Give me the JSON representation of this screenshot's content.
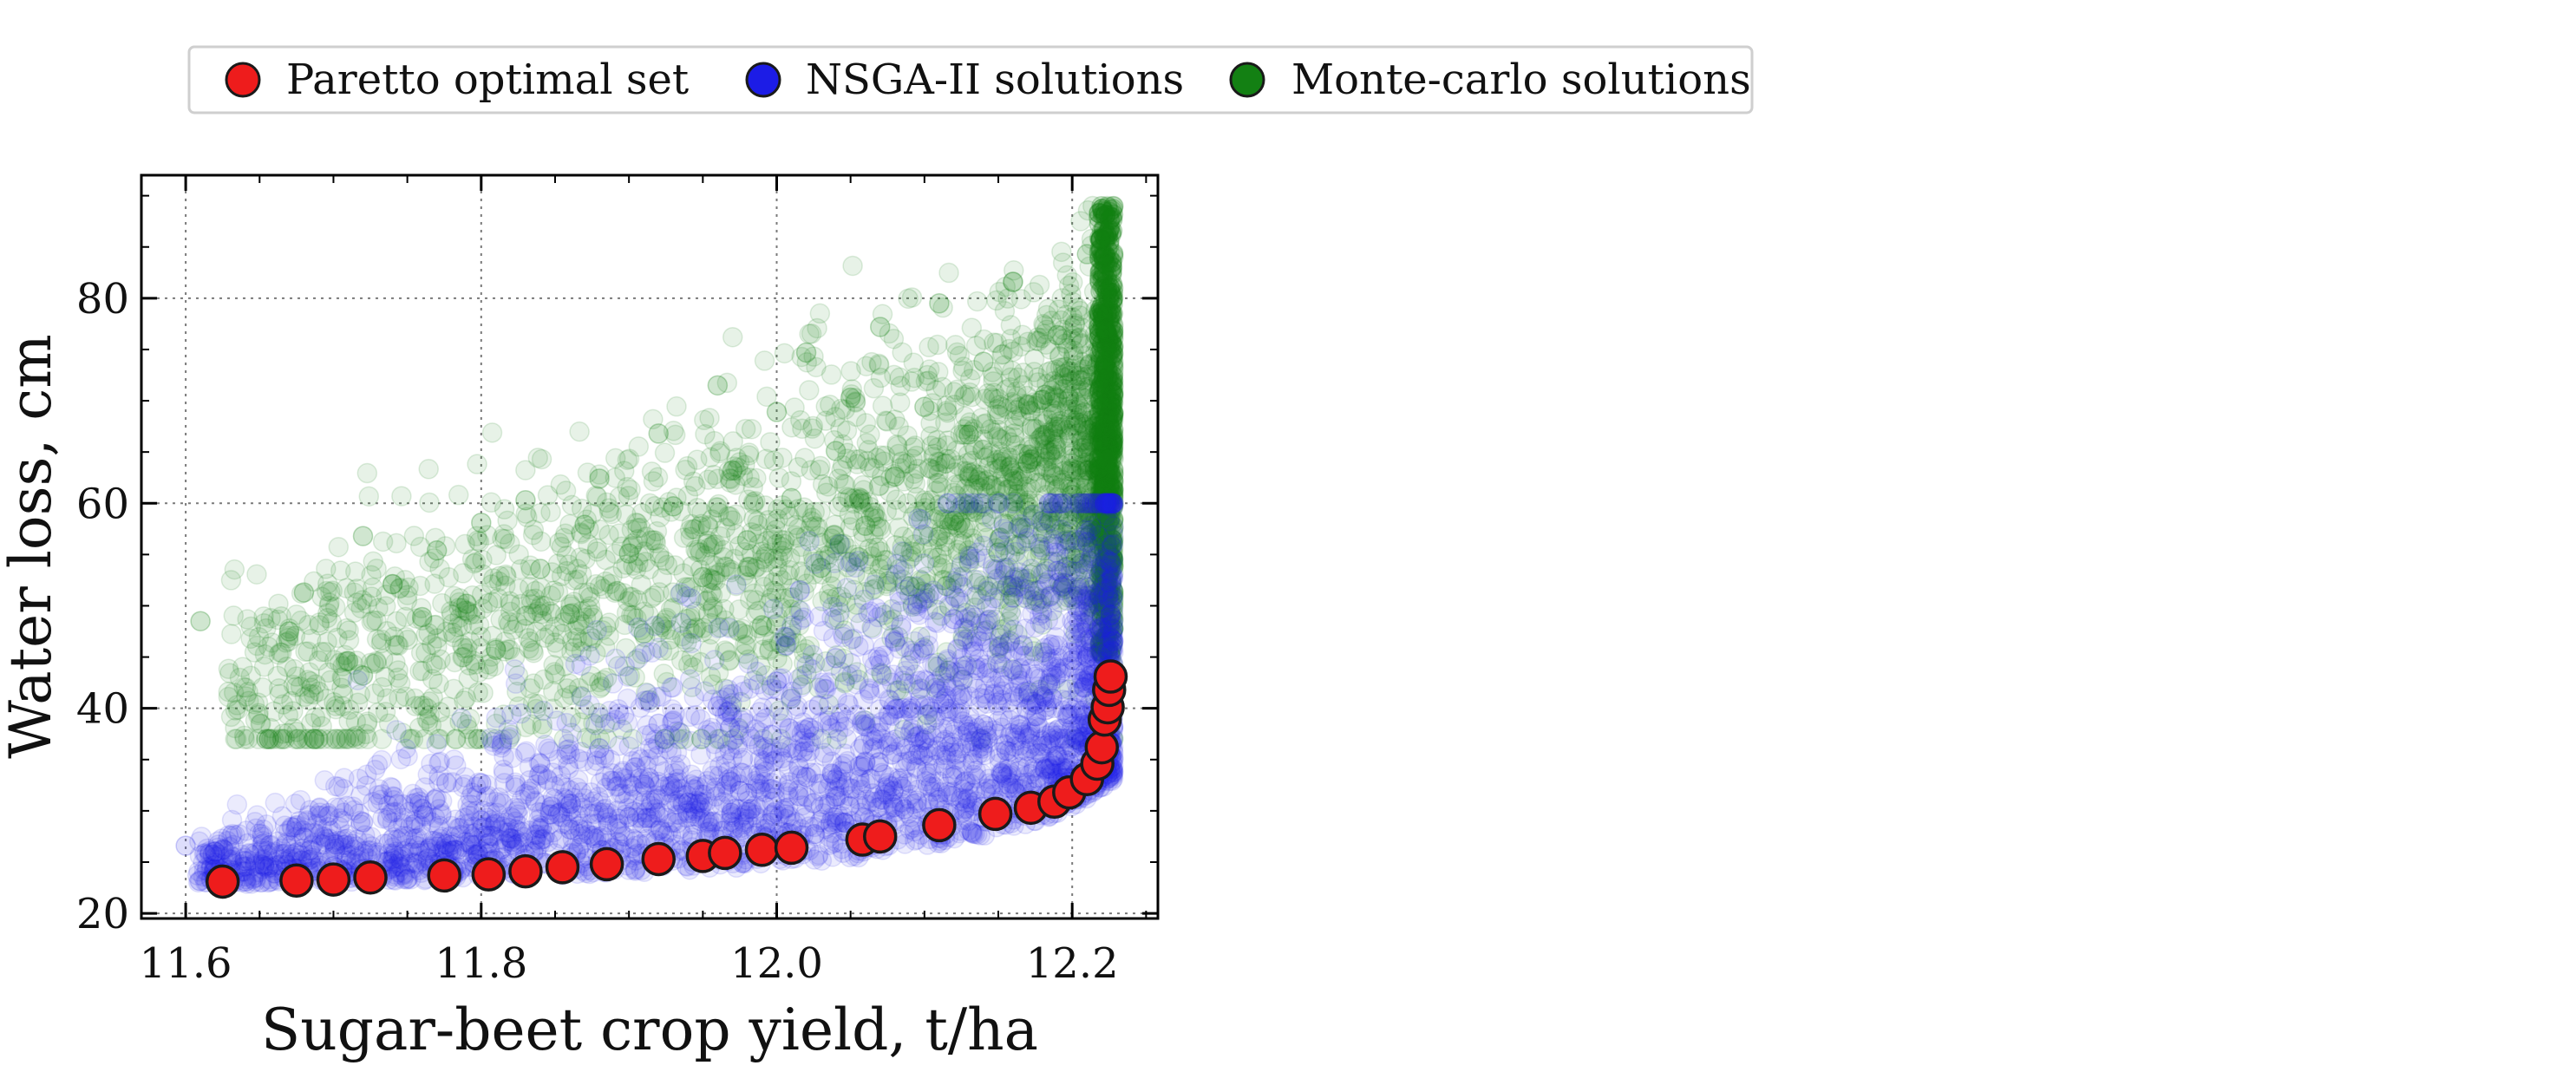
{
  "chart_data": {
    "type": "scatter",
    "title": "",
    "xlabel": "Sugar-beet crop yield, t/ha",
    "ylabel": "Water loss, cm",
    "xlim": [
      11.57,
      12.258
    ],
    "ylim": [
      19.5,
      92
    ],
    "xticks": [
      11.6,
      11.8,
      12.0,
      12.2
    ],
    "xtick_labels": [
      "11.6",
      "11.8",
      "12.0",
      "12.2"
    ],
    "yticks": [
      20,
      40,
      60,
      80
    ],
    "ytick_labels": [
      "20",
      "40",
      "60",
      "80"
    ],
    "grid": true,
    "legend_position": "top",
    "series": [
      {
        "name": "Monte-carlo solutions",
        "color": "#138013",
        "marker": "circle-translucent",
        "points": [
          [
            11.61,
            48.5
          ],
          [
            11.67,
            47.5
          ],
          [
            11.68,
            51.3
          ],
          [
            11.71,
            44.6
          ],
          [
            11.72,
            43.2
          ],
          [
            11.72,
            56.8
          ],
          [
            11.74,
            52.1
          ],
          [
            11.76,
            48.9
          ],
          [
            11.77,
            55.4
          ],
          [
            11.79,
            50.2
          ],
          [
            11.8,
            58.1
          ],
          [
            11.81,
            45.7
          ],
          [
            11.83,
            60.3
          ],
          [
            11.84,
            53.6
          ],
          [
            11.86,
            49.2
          ],
          [
            11.87,
            57.9
          ],
          [
            11.88,
            62.4
          ],
          [
            11.9,
            55.1
          ],
          [
            11.91,
            47.3
          ],
          [
            11.92,
            66.8
          ],
          [
            11.93,
            59.7
          ],
          [
            11.95,
            52.8
          ],
          [
            11.96,
            71.5
          ],
          [
            11.97,
            63.2
          ],
          [
            11.98,
            56.4
          ],
          [
            11.99,
            48.1
          ],
          [
            12.0,
            68.9
          ],
          [
            12.01,
            60.5
          ],
          [
            12.02,
            74.7
          ],
          [
            12.03,
            53.7
          ],
          [
            12.04,
            65.1
          ],
          [
            12.05,
            70.3
          ],
          [
            12.06,
            57.8
          ],
          [
            12.07,
            77.2
          ],
          [
            12.08,
            62.6
          ],
          [
            12.09,
            51.9
          ],
          [
            12.1,
            69.4
          ],
          [
            12.11,
            79.5
          ],
          [
            12.12,
            58.3
          ],
          [
            12.13,
            66.7
          ],
          [
            12.14,
            73.8
          ],
          [
            12.15,
            55.2
          ],
          [
            12.16,
            81.6
          ],
          [
            12.17,
            63.9
          ],
          [
            12.18,
            70.1
          ],
          [
            12.19,
            76.4
          ],
          [
            12.2,
            60.8
          ],
          [
            12.21,
            84.3
          ],
          [
            12.215,
            67.5
          ],
          [
            12.22,
            88.7
          ],
          [
            12.222,
            72.9
          ],
          [
            12.224,
            64.2
          ],
          [
            12.225,
            80.1
          ],
          [
            12.226,
            58.6
          ]
        ]
      },
      {
        "name": "NSGA-II solutions",
        "color": "#1c1ce6",
        "marker": "circle-translucent",
        "points": [
          [
            11.6,
            26.6
          ],
          [
            11.62,
            24.3
          ],
          [
            11.64,
            25.1
          ],
          [
            11.66,
            23.9
          ],
          [
            11.68,
            27.4
          ],
          [
            11.7,
            24.6
          ],
          [
            11.72,
            28.9
          ],
          [
            11.74,
            25.3
          ],
          [
            11.76,
            30.2
          ],
          [
            11.78,
            26.1
          ],
          [
            11.8,
            32.7
          ],
          [
            11.82,
            27.3
          ],
          [
            11.84,
            34.6
          ],
          [
            11.86,
            28.2
          ],
          [
            11.88,
            36.1
          ],
          [
            11.9,
            29.4
          ],
          [
            11.92,
            38.5
          ],
          [
            11.94,
            30.8
          ],
          [
            11.96,
            40.2
          ],
          [
            11.98,
            31.7
          ],
          [
            12.0,
            42.6
          ],
          [
            12.02,
            33.3
          ],
          [
            12.04,
            44.9
          ],
          [
            12.06,
            34.8
          ],
          [
            12.08,
            46.5
          ],
          [
            12.1,
            36.9
          ],
          [
            12.12,
            48.7
          ],
          [
            12.14,
            38.4
          ],
          [
            12.16,
            50.8
          ],
          [
            12.18,
            41.2
          ],
          [
            12.19,
            53.4
          ],
          [
            12.2,
            44.7
          ],
          [
            12.21,
            56.2
          ],
          [
            12.22,
            47.9
          ],
          [
            12.224,
            52.3
          ],
          [
            12.226,
            49.1
          ]
        ]
      },
      {
        "name": "Paretto optimal set",
        "color": "#ee1c1c",
        "marker": "circle-outlined",
        "points": [
          [
            11.625,
            23.1
          ],
          [
            11.675,
            23.2
          ],
          [
            11.7,
            23.3
          ],
          [
            11.725,
            23.5
          ],
          [
            11.775,
            23.7
          ],
          [
            11.805,
            23.8
          ],
          [
            11.83,
            24.1
          ],
          [
            11.855,
            24.5
          ],
          [
            11.885,
            24.8
          ],
          [
            11.92,
            25.3
          ],
          [
            11.95,
            25.6
          ],
          [
            11.965,
            25.9
          ],
          [
            11.99,
            26.2
          ],
          [
            12.01,
            26.4
          ],
          [
            12.058,
            27.2
          ],
          [
            12.07,
            27.5
          ],
          [
            12.11,
            28.6
          ],
          [
            12.148,
            29.7
          ],
          [
            12.172,
            30.3
          ],
          [
            12.188,
            30.9
          ],
          [
            12.198,
            31.8
          ],
          [
            12.21,
            33.1
          ],
          [
            12.217,
            34.6
          ],
          [
            12.22,
            36.2
          ],
          [
            12.222,
            38.9
          ],
          [
            12.224,
            40.1
          ],
          [
            12.225,
            41.8
          ],
          [
            12.226,
            43.1
          ]
        ]
      }
    ]
  }
}
